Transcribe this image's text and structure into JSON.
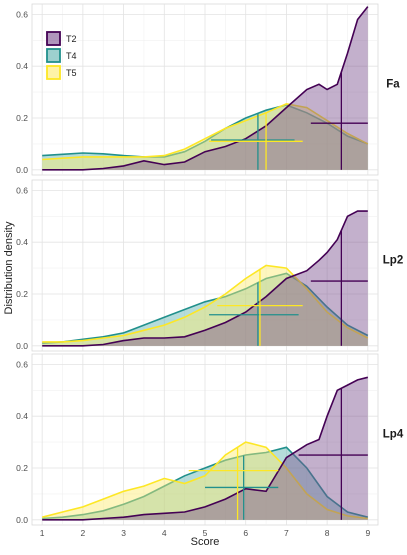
{
  "figure": {
    "ylabel": "Distribution density",
    "xlabel": "Score"
  },
  "legend": {
    "entries": [
      {
        "name": "T2",
        "color": "#440154",
        "fill": "#7b4f8f"
      },
      {
        "name": "T4",
        "color": "#21908c",
        "fill": "#5bb1ad"
      },
      {
        "name": "T5",
        "color": "#fde725",
        "fill": "#fdeb6e"
      }
    ]
  },
  "chart_data": {
    "type": "area",
    "xlim": [
      0.75,
      9.25
    ],
    "ylim": [
      -0.02,
      0.64
    ],
    "x_ticks": [
      1,
      2,
      3,
      4,
      5,
      6,
      7,
      8,
      9
    ],
    "y_ticks": [
      0.0,
      0.2,
      0.4,
      0.6
    ],
    "y_tick_labels": [
      "0.0",
      "0.2",
      "0.4",
      "0.6"
    ],
    "grid": true,
    "legend_placement": "top-left",
    "panels": [
      {
        "strip": "Fa",
        "series": [
          {
            "name": "T2",
            "x": [
              1,
              1.5,
              2,
              2.5,
              3,
              3.5,
              4,
              4.5,
              5,
              5.5,
              6,
              6.5,
              7,
              7.5,
              7.8,
              8,
              8.25,
              8.5,
              8.75,
              9
            ],
            "y": [
              0,
              0,
              0,
              0.005,
              0.015,
              0.035,
              0.02,
              0.03,
              0.07,
              0.09,
              0.12,
              0.17,
              0.24,
              0.31,
              0.33,
              0.31,
              0.33,
              0.45,
              0.58,
              0.63
            ],
            "mean": 8.35,
            "ci": [
              7.6,
              9
            ],
            "mean_height": 0.18
          },
          {
            "name": "T4",
            "x": [
              1,
              1.5,
              2,
              2.5,
              3,
              3.5,
              4,
              4.5,
              5,
              5.5,
              6,
              6.5,
              7,
              7.5,
              8,
              8.5,
              9
            ],
            "y": [
              0.055,
              0.06,
              0.065,
              0.062,
              0.055,
              0.05,
              0.05,
              0.07,
              0.11,
              0.16,
              0.2,
              0.23,
              0.25,
              0.22,
              0.18,
              0.13,
              0.1
            ],
            "mean": 6.3,
            "ci": [
              5.15,
              7.2
            ],
            "mean_height": 0.115
          },
          {
            "name": "T5",
            "x": [
              1,
              1.5,
              2,
              2.5,
              3,
              3.5,
              4,
              4.5,
              5,
              5.5,
              6,
              6.5,
              7,
              7.5,
              8,
              8.5,
              9
            ],
            "y": [
              0.04,
              0.045,
              0.05,
              0.05,
              0.05,
              0.05,
              0.055,
              0.08,
              0.12,
              0.16,
              0.19,
              0.22,
              0.255,
              0.24,
              0.19,
              0.14,
              0.1
            ],
            "mean": 6.5,
            "ci": [
              5.1,
              7.4
            ],
            "mean_height": 0.11
          }
        ]
      },
      {
        "strip": "Lp2",
        "series": [
          {
            "name": "T2",
            "x": [
              1,
              1.5,
              2,
              2.5,
              3,
              3.5,
              4,
              4.5,
              5,
              5.5,
              6,
              6.5,
              7,
              7.5,
              7.8,
              8,
              8.25,
              8.5,
              8.75,
              9
            ],
            "y": [
              0,
              0,
              0,
              0.005,
              0.02,
              0.03,
              0.03,
              0.035,
              0.06,
              0.09,
              0.13,
              0.19,
              0.26,
              0.29,
              0.33,
              0.36,
              0.41,
              0.5,
              0.52,
              0.52
            ],
            "mean": 8.35,
            "ci": [
              7.6,
              9
            ],
            "mean_height": 0.25
          },
          {
            "name": "T4",
            "x": [
              1,
              1.5,
              2,
              2.5,
              3,
              3.5,
              4,
              4.5,
              5,
              5.5,
              6,
              6.5,
              7,
              7.5,
              8,
              8.5,
              9
            ],
            "y": [
              0.01,
              0.015,
              0.025,
              0.035,
              0.05,
              0.08,
              0.11,
              0.14,
              0.17,
              0.19,
              0.22,
              0.26,
              0.28,
              0.23,
              0.15,
              0.08,
              0.04
            ],
            "mean": 6.3,
            "ci": [
              5.1,
              7.3
            ],
            "mean_height": 0.12
          },
          {
            "name": "T5",
            "x": [
              1,
              1.5,
              2,
              2.5,
              3,
              3.5,
              4,
              4.5,
              5,
              5.5,
              6,
              6.5,
              7,
              7.5,
              8,
              8.5,
              9
            ],
            "y": [
              0.015,
              0.015,
              0.02,
              0.03,
              0.04,
              0.06,
              0.08,
              0.11,
              0.15,
              0.2,
              0.26,
              0.31,
              0.3,
              0.22,
              0.13,
              0.07,
              0.03
            ],
            "mean": 6.35,
            "ci": [
              5.3,
              7.4
            ],
            "mean_height": 0.155
          }
        ]
      },
      {
        "strip": "Lp4",
        "series": [
          {
            "name": "T2",
            "x": [
              1,
              1.5,
              2,
              2.5,
              3,
              3.5,
              4,
              4.5,
              5,
              5.5,
              6,
              6.5,
              7,
              7.5,
              7.8,
              8,
              8.25,
              8.5,
              8.75,
              9
            ],
            "y": [
              0,
              0,
              0,
              0.005,
              0.01,
              0.02,
              0.025,
              0.03,
              0.05,
              0.08,
              0.12,
              0.11,
              0.24,
              0.29,
              0.31,
              0.4,
              0.5,
              0.52,
              0.54,
              0.55
            ],
            "mean": 8.35,
            "ci": [
              7.3,
              9
            ],
            "mean_height": 0.25
          },
          {
            "name": "T4",
            "x": [
              1,
              1.5,
              2,
              2.5,
              3,
              3.5,
              4,
              4.5,
              5,
              5.5,
              6,
              6.5,
              7,
              7.5,
              8,
              8.5,
              9
            ],
            "y": [
              0.005,
              0.01,
              0.02,
              0.035,
              0.06,
              0.09,
              0.13,
              0.17,
              0.2,
              0.23,
              0.25,
              0.26,
              0.28,
              0.2,
              0.09,
              0.03,
              0.01
            ],
            "mean": 5.95,
            "ci": [
              5,
              6.8
            ],
            "mean_height": 0.125
          },
          {
            "name": "T5",
            "x": [
              1,
              1.5,
              2,
              2.5,
              3,
              3.5,
              4,
              4.5,
              5,
              5.5,
              6,
              6.5,
              7,
              7.5,
              8,
              8.5,
              9
            ],
            "y": [
              0.01,
              0.03,
              0.05,
              0.08,
              0.11,
              0.13,
              0.16,
              0.14,
              0.17,
              0.25,
              0.3,
              0.28,
              0.2,
              0.1,
              0.04,
              0.015,
              0.005
            ],
            "mean": 5.8,
            "ci": [
              4.6,
              6.8
            ],
            "mean_height": 0.19
          }
        ]
      }
    ]
  }
}
